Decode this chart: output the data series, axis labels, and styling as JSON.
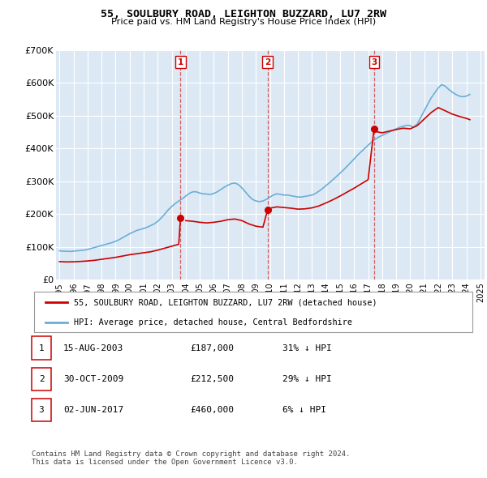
{
  "title": "55, SOULBURY ROAD, LEIGHTON BUZZARD, LU7 2RW",
  "subtitle": "Price paid vs. HM Land Registry's House Price Index (HPI)",
  "bg_color": "#dce9f5",
  "ylim": [
    0,
    700000
  ],
  "yticks": [
    0,
    100000,
    200000,
    300000,
    400000,
    500000,
    600000,
    700000
  ],
  "ytick_labels": [
    "£0",
    "£100K",
    "£200K",
    "£300K",
    "£400K",
    "£500K",
    "£600K",
    "£700K"
  ],
  "hpi_color": "#6baed6",
  "price_color": "#cc0000",
  "sale_date_nums": [
    2003.62,
    2009.83,
    2017.42
  ],
  "sale_prices": [
    187000,
    212500,
    460000
  ],
  "sale_labels": [
    "1",
    "2",
    "3"
  ],
  "legend_price_label": "55, SOULBURY ROAD, LEIGHTON BUZZARD, LU7 2RW (detached house)",
  "legend_hpi_label": "HPI: Average price, detached house, Central Bedfordshire",
  "table_rows": [
    [
      "1",
      "15-AUG-2003",
      "£187,000",
      "31% ↓ HPI"
    ],
    [
      "2",
      "30-OCT-2009",
      "£212,500",
      "29% ↓ HPI"
    ],
    [
      "3",
      "02-JUN-2017",
      "£460,000",
      "6% ↓ HPI"
    ]
  ],
  "footer": "Contains HM Land Registry data © Crown copyright and database right 2024.\nThis data is licensed under the Open Government Licence v3.0.",
  "hpi_dates": [
    1995.0,
    1995.25,
    1995.5,
    1995.75,
    1996.0,
    1996.25,
    1996.5,
    1996.75,
    1997.0,
    1997.25,
    1997.5,
    1997.75,
    1998.0,
    1998.25,
    1998.5,
    1998.75,
    1999.0,
    1999.25,
    1999.5,
    1999.75,
    2000.0,
    2000.25,
    2000.5,
    2000.75,
    2001.0,
    2001.25,
    2001.5,
    2001.75,
    2002.0,
    2002.25,
    2002.5,
    2002.75,
    2003.0,
    2003.25,
    2003.5,
    2003.75,
    2004.0,
    2004.25,
    2004.5,
    2004.75,
    2005.0,
    2005.25,
    2005.5,
    2005.75,
    2006.0,
    2006.25,
    2006.5,
    2006.75,
    2007.0,
    2007.25,
    2007.5,
    2007.75,
    2008.0,
    2008.25,
    2008.5,
    2008.75,
    2009.0,
    2009.25,
    2009.5,
    2009.75,
    2010.0,
    2010.25,
    2010.5,
    2010.75,
    2011.0,
    2011.25,
    2011.5,
    2011.75,
    2012.0,
    2012.25,
    2012.5,
    2012.75,
    2013.0,
    2013.25,
    2013.5,
    2013.75,
    2014.0,
    2014.25,
    2014.5,
    2014.75,
    2015.0,
    2015.25,
    2015.5,
    2015.75,
    2016.0,
    2016.25,
    2016.5,
    2016.75,
    2017.0,
    2017.25,
    2017.5,
    2017.75,
    2018.0,
    2018.25,
    2018.5,
    2018.75,
    2019.0,
    2019.25,
    2019.5,
    2019.75,
    2020.0,
    2020.25,
    2020.5,
    2020.75,
    2021.0,
    2021.25,
    2021.5,
    2021.75,
    2022.0,
    2022.25,
    2022.5,
    2022.75,
    2023.0,
    2023.25,
    2023.5,
    2023.75,
    2024.0,
    2024.25
  ],
  "hpi_values": [
    88000,
    87000,
    86500,
    86000,
    87000,
    88000,
    89000,
    90000,
    92000,
    95000,
    98000,
    101000,
    104000,
    107000,
    110000,
    113000,
    117000,
    122000,
    128000,
    134000,
    140000,
    145000,
    150000,
    153000,
    156000,
    160000,
    165000,
    170000,
    178000,
    188000,
    200000,
    213000,
    223000,
    232000,
    240000,
    247000,
    255000,
    263000,
    268000,
    268000,
    264000,
    262000,
    261000,
    260000,
    263000,
    268000,
    275000,
    282000,
    288000,
    293000,
    295000,
    290000,
    280000,
    268000,
    255000,
    245000,
    240000,
    238000,
    240000,
    245000,
    252000,
    258000,
    262000,
    260000,
    258000,
    258000,
    256000,
    254000,
    252000,
    252000,
    254000,
    256000,
    258000,
    263000,
    270000,
    278000,
    287000,
    296000,
    305000,
    315000,
    325000,
    335000,
    346000,
    357000,
    368000,
    380000,
    390000,
    400000,
    410000,
    420000,
    428000,
    435000,
    440000,
    445000,
    450000,
    455000,
    460000,
    465000,
    468000,
    471000,
    470000,
    465000,
    475000,
    495000,
    515000,
    535000,
    555000,
    570000,
    585000,
    595000,
    590000,
    580000,
    572000,
    565000,
    560000,
    558000,
    560000,
    565000
  ],
  "price_dates": [
    1995.0,
    1995.5,
    1996.0,
    1996.5,
    1997.0,
    1997.5,
    1998.0,
    1998.5,
    1999.0,
    1999.5,
    2000.0,
    2000.5,
    2001.0,
    2001.5,
    2002.0,
    2002.5,
    2003.0,
    2003.5,
    2003.62,
    null,
    2004.0,
    2004.5,
    2005.0,
    2005.5,
    2006.0,
    2006.5,
    2007.0,
    2007.5,
    2008.0,
    2008.5,
    2009.0,
    2009.5,
    2009.83,
    null,
    2010.0,
    2010.5,
    2011.0,
    2011.5,
    2012.0,
    2012.5,
    2013.0,
    2013.5,
    2014.0,
    2014.5,
    2015.0,
    2015.5,
    2016.0,
    2016.5,
    2017.0,
    2017.42,
    null,
    2017.5,
    2018.0,
    2018.5,
    2019.0,
    2019.5,
    2020.0,
    2020.5,
    2021.0,
    2021.5,
    2022.0,
    2022.5,
    2023.0,
    2023.5,
    2024.0,
    2024.25
  ],
  "price_values": [
    55000,
    54000,
    54500,
    55500,
    57000,
    59000,
    62000,
    65000,
    68000,
    72000,
    76000,
    79000,
    82000,
    85000,
    90000,
    96000,
    102000,
    108000,
    187000,
    null,
    180000,
    178000,
    175000,
    173000,
    175000,
    178000,
    183000,
    185000,
    180000,
    170000,
    163000,
    160000,
    212500,
    null,
    218000,
    222000,
    220000,
    218000,
    215000,
    216000,
    219000,
    225000,
    234000,
    244000,
    255000,
    267000,
    279000,
    292000,
    305000,
    460000,
    null,
    452000,
    448000,
    453000,
    458000,
    462000,
    460000,
    470000,
    490000,
    510000,
    525000,
    515000,
    505000,
    498000,
    492000,
    488000
  ]
}
